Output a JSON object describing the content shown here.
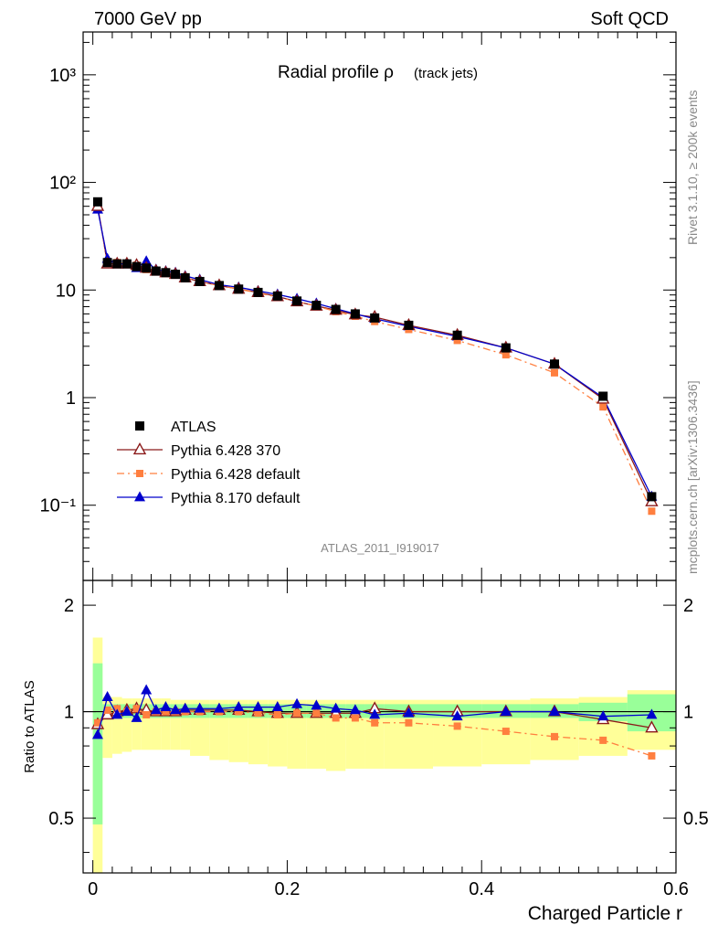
{
  "header": {
    "left": "7000 GeV pp",
    "right": "Soft QCD"
  },
  "side_labels": {
    "rivet": "Rivet 3.1.10, ≥ 200k events",
    "source": "mcplots.cern.ch [arXiv:1306.3436]"
  },
  "chart_data": [
    {
      "type": "line",
      "title": "Radial profile ρ",
      "title_suffix": "(track jets)",
      "watermark": "ATLAS_2011_I919017",
      "xlabel": "Charged Particle r",
      "ylabel": "",
      "xlim": [
        -0.01,
        0.6
      ],
      "ylim": [
        0.02,
        2500
      ],
      "yscale": "log",
      "yticks": [
        {
          "value": 0.1,
          "label": "10⁻¹"
        },
        {
          "value": 1,
          "label": "1"
        },
        {
          "value": 10,
          "label": "10"
        },
        {
          "value": 100,
          "label": "10²"
        },
        {
          "value": 1000,
          "label": "10³"
        }
      ],
      "legend_position": "bottom-left",
      "x": [
        0.005,
        0.015,
        0.025,
        0.035,
        0.045,
        0.055,
        0.065,
        0.075,
        0.085,
        0.095,
        0.11,
        0.13,
        0.15,
        0.17,
        0.19,
        0.21,
        0.23,
        0.25,
        0.27,
        0.29,
        0.325,
        0.375,
        0.425,
        0.475,
        0.525,
        0.575
      ],
      "series": [
        {
          "name": "ATLAS",
          "color": "#000000",
          "marker": "square",
          "line": "none",
          "values": [
            66,
            18,
            17.5,
            17.5,
            16.5,
            16,
            15,
            14.5,
            14,
            13,
            12,
            11,
            10.2,
            9.5,
            8.8,
            7.9,
            7.2,
            6.6,
            6.0,
            5.5,
            4.7,
            3.8,
            2.9,
            2.05,
            1.03,
            0.12
          ]
        },
        {
          "name": "Pythia 6.428 370",
          "color": "#8b1a1a",
          "marker": "triangle-open",
          "line": "solid",
          "values": [
            60,
            17.5,
            17.5,
            17.5,
            17,
            16,
            15,
            14.5,
            14,
            13,
            12,
            11,
            10.2,
            9.5,
            8.7,
            7.8,
            7.1,
            6.5,
            5.9,
            5.6,
            4.7,
            3.8,
            2.9,
            2.05,
            0.97,
            0.108
          ]
        },
        {
          "name": "Pythia 6.428 default",
          "color": "#ff7f3f",
          "marker": "square",
          "line": "dashdot",
          "values": [
            61,
            18,
            18,
            17.5,
            17,
            15.5,
            15,
            14.5,
            14,
            13,
            12,
            11,
            10.2,
            9.4,
            8.6,
            7.8,
            7.1,
            6.3,
            5.7,
            5.1,
            4.3,
            3.4,
            2.5,
            1.7,
            0.82,
            0.088
          ]
        },
        {
          "name": "Pythia 8.170 default",
          "color": "#0000cc",
          "marker": "triangle",
          "line": "solid",
          "values": [
            56,
            19.5,
            17.5,
            17.5,
            16,
            18.5,
            15.5,
            15,
            14.5,
            13.5,
            12.5,
            11.2,
            10.6,
            9.8,
            9.1,
            8.3,
            7.5,
            6.7,
            6.0,
            5.4,
            4.6,
            3.7,
            2.9,
            2.05,
            1.0,
            0.12
          ]
        }
      ]
    },
    {
      "type": "line",
      "title": "",
      "xlabel": "Charged Particle r",
      "ylabel": "Ratio to ATLAS",
      "xlim": [
        -0.01,
        0.6
      ],
      "ylim": [
        0.35,
        2.35
      ],
      "yscale": "log",
      "yticks": [
        {
          "value": 0.5,
          "label": "0.5"
        },
        {
          "value": 1,
          "label": "1"
        },
        {
          "value": 2,
          "label": "2"
        }
      ],
      "xticks": [
        {
          "value": 0,
          "label": "0"
        },
        {
          "value": 0.2,
          "label": "0.2"
        },
        {
          "value": 0.4,
          "label": "0.4"
        },
        {
          "value": 0.6,
          "label": "0.6"
        }
      ],
      "bands": {
        "bin_edges": [
          0,
          0.01,
          0.02,
          0.03,
          0.04,
          0.05,
          0.06,
          0.07,
          0.08,
          0.09,
          0.1,
          0.12,
          0.14,
          0.16,
          0.18,
          0.2,
          0.22,
          0.24,
          0.26,
          0.28,
          0.3,
          0.35,
          0.4,
          0.45,
          0.5,
          0.55,
          0.6
        ],
        "total_low": [
          0.35,
          0.74,
          0.76,
          0.77,
          0.78,
          0.78,
          0.78,
          0.78,
          0.78,
          0.78,
          0.75,
          0.73,
          0.72,
          0.71,
          0.7,
          0.69,
          0.69,
          0.68,
          0.69,
          0.69,
          0.69,
          0.7,
          0.71,
          0.73,
          0.75,
          0.78
        ],
        "total_high": [
          1.62,
          1.1,
          1.1,
          1.09,
          1.09,
          1.09,
          1.09,
          1.09,
          1.08,
          1.08,
          1.08,
          1.08,
          1.08,
          1.08,
          1.08,
          1.08,
          1.08,
          1.08,
          1.08,
          1.08,
          1.08,
          1.08,
          1.08,
          1.09,
          1.1,
          1.15
        ],
        "stat_low": [
          0.48,
          0.95,
          0.96,
          0.96,
          0.96,
          0.96,
          0.96,
          0.96,
          0.96,
          0.96,
          0.96,
          0.96,
          0.96,
          0.96,
          0.96,
          0.96,
          0.96,
          0.96,
          0.96,
          0.96,
          0.96,
          0.96,
          0.96,
          0.96,
          0.94,
          0.88
        ],
        "stat_high": [
          1.37,
          1.05,
          1.05,
          1.05,
          1.05,
          1.05,
          1.05,
          1.05,
          1.05,
          1.05,
          1.05,
          1.05,
          1.05,
          1.05,
          1.05,
          1.05,
          1.05,
          1.05,
          1.05,
          1.05,
          1.05,
          1.05,
          1.05,
          1.05,
          1.06,
          1.12
        ],
        "total_color": "#ffff99",
        "stat_color": "#99ff99"
      },
      "x": [
        0.005,
        0.015,
        0.025,
        0.035,
        0.045,
        0.055,
        0.065,
        0.075,
        0.085,
        0.095,
        0.11,
        0.13,
        0.15,
        0.17,
        0.19,
        0.21,
        0.23,
        0.25,
        0.27,
        0.29,
        0.325,
        0.375,
        0.425,
        0.475,
        0.525,
        0.575
      ],
      "series": [
        {
          "name": "Pythia 6.428 370",
          "color": "#8b1a1a",
          "marker": "triangle-open",
          "line": "solid",
          "values": [
            0.92,
            0.98,
            1.0,
            1.01,
            1.02,
            1.01,
            1.0,
            1.0,
            1.0,
            1.01,
            1.01,
            1.01,
            1.01,
            1.0,
            0.99,
            0.99,
            0.99,
            0.99,
            0.99,
            1.02,
            1.0,
            1.0,
            1.0,
            1.0,
            0.95,
            0.9
          ]
        },
        {
          "name": "Pythia 6.428 default",
          "color": "#ff7f3f",
          "marker": "square",
          "line": "dashdot",
          "values": [
            0.93,
            1.01,
            1.02,
            1.0,
            1.02,
            0.98,
            1.0,
            1.0,
            1.0,
            1.0,
            1.0,
            1.0,
            1.0,
            0.99,
            0.98,
            0.99,
            0.99,
            0.96,
            0.96,
            0.93,
            0.93,
            0.91,
            0.88,
            0.85,
            0.83,
            0.75
          ]
        },
        {
          "name": "Pythia 8.170 default",
          "color": "#0000cc",
          "marker": "triangle",
          "line": "solid",
          "values": [
            0.86,
            1.1,
            0.98,
            1.0,
            0.96,
            1.15,
            1.01,
            1.03,
            1.01,
            1.02,
            1.02,
            1.02,
            1.03,
            1.03,
            1.03,
            1.05,
            1.04,
            1.02,
            1.01,
            0.98,
            0.99,
            0.97,
            1.0,
            1.0,
            0.97,
            0.98
          ]
        }
      ]
    }
  ]
}
